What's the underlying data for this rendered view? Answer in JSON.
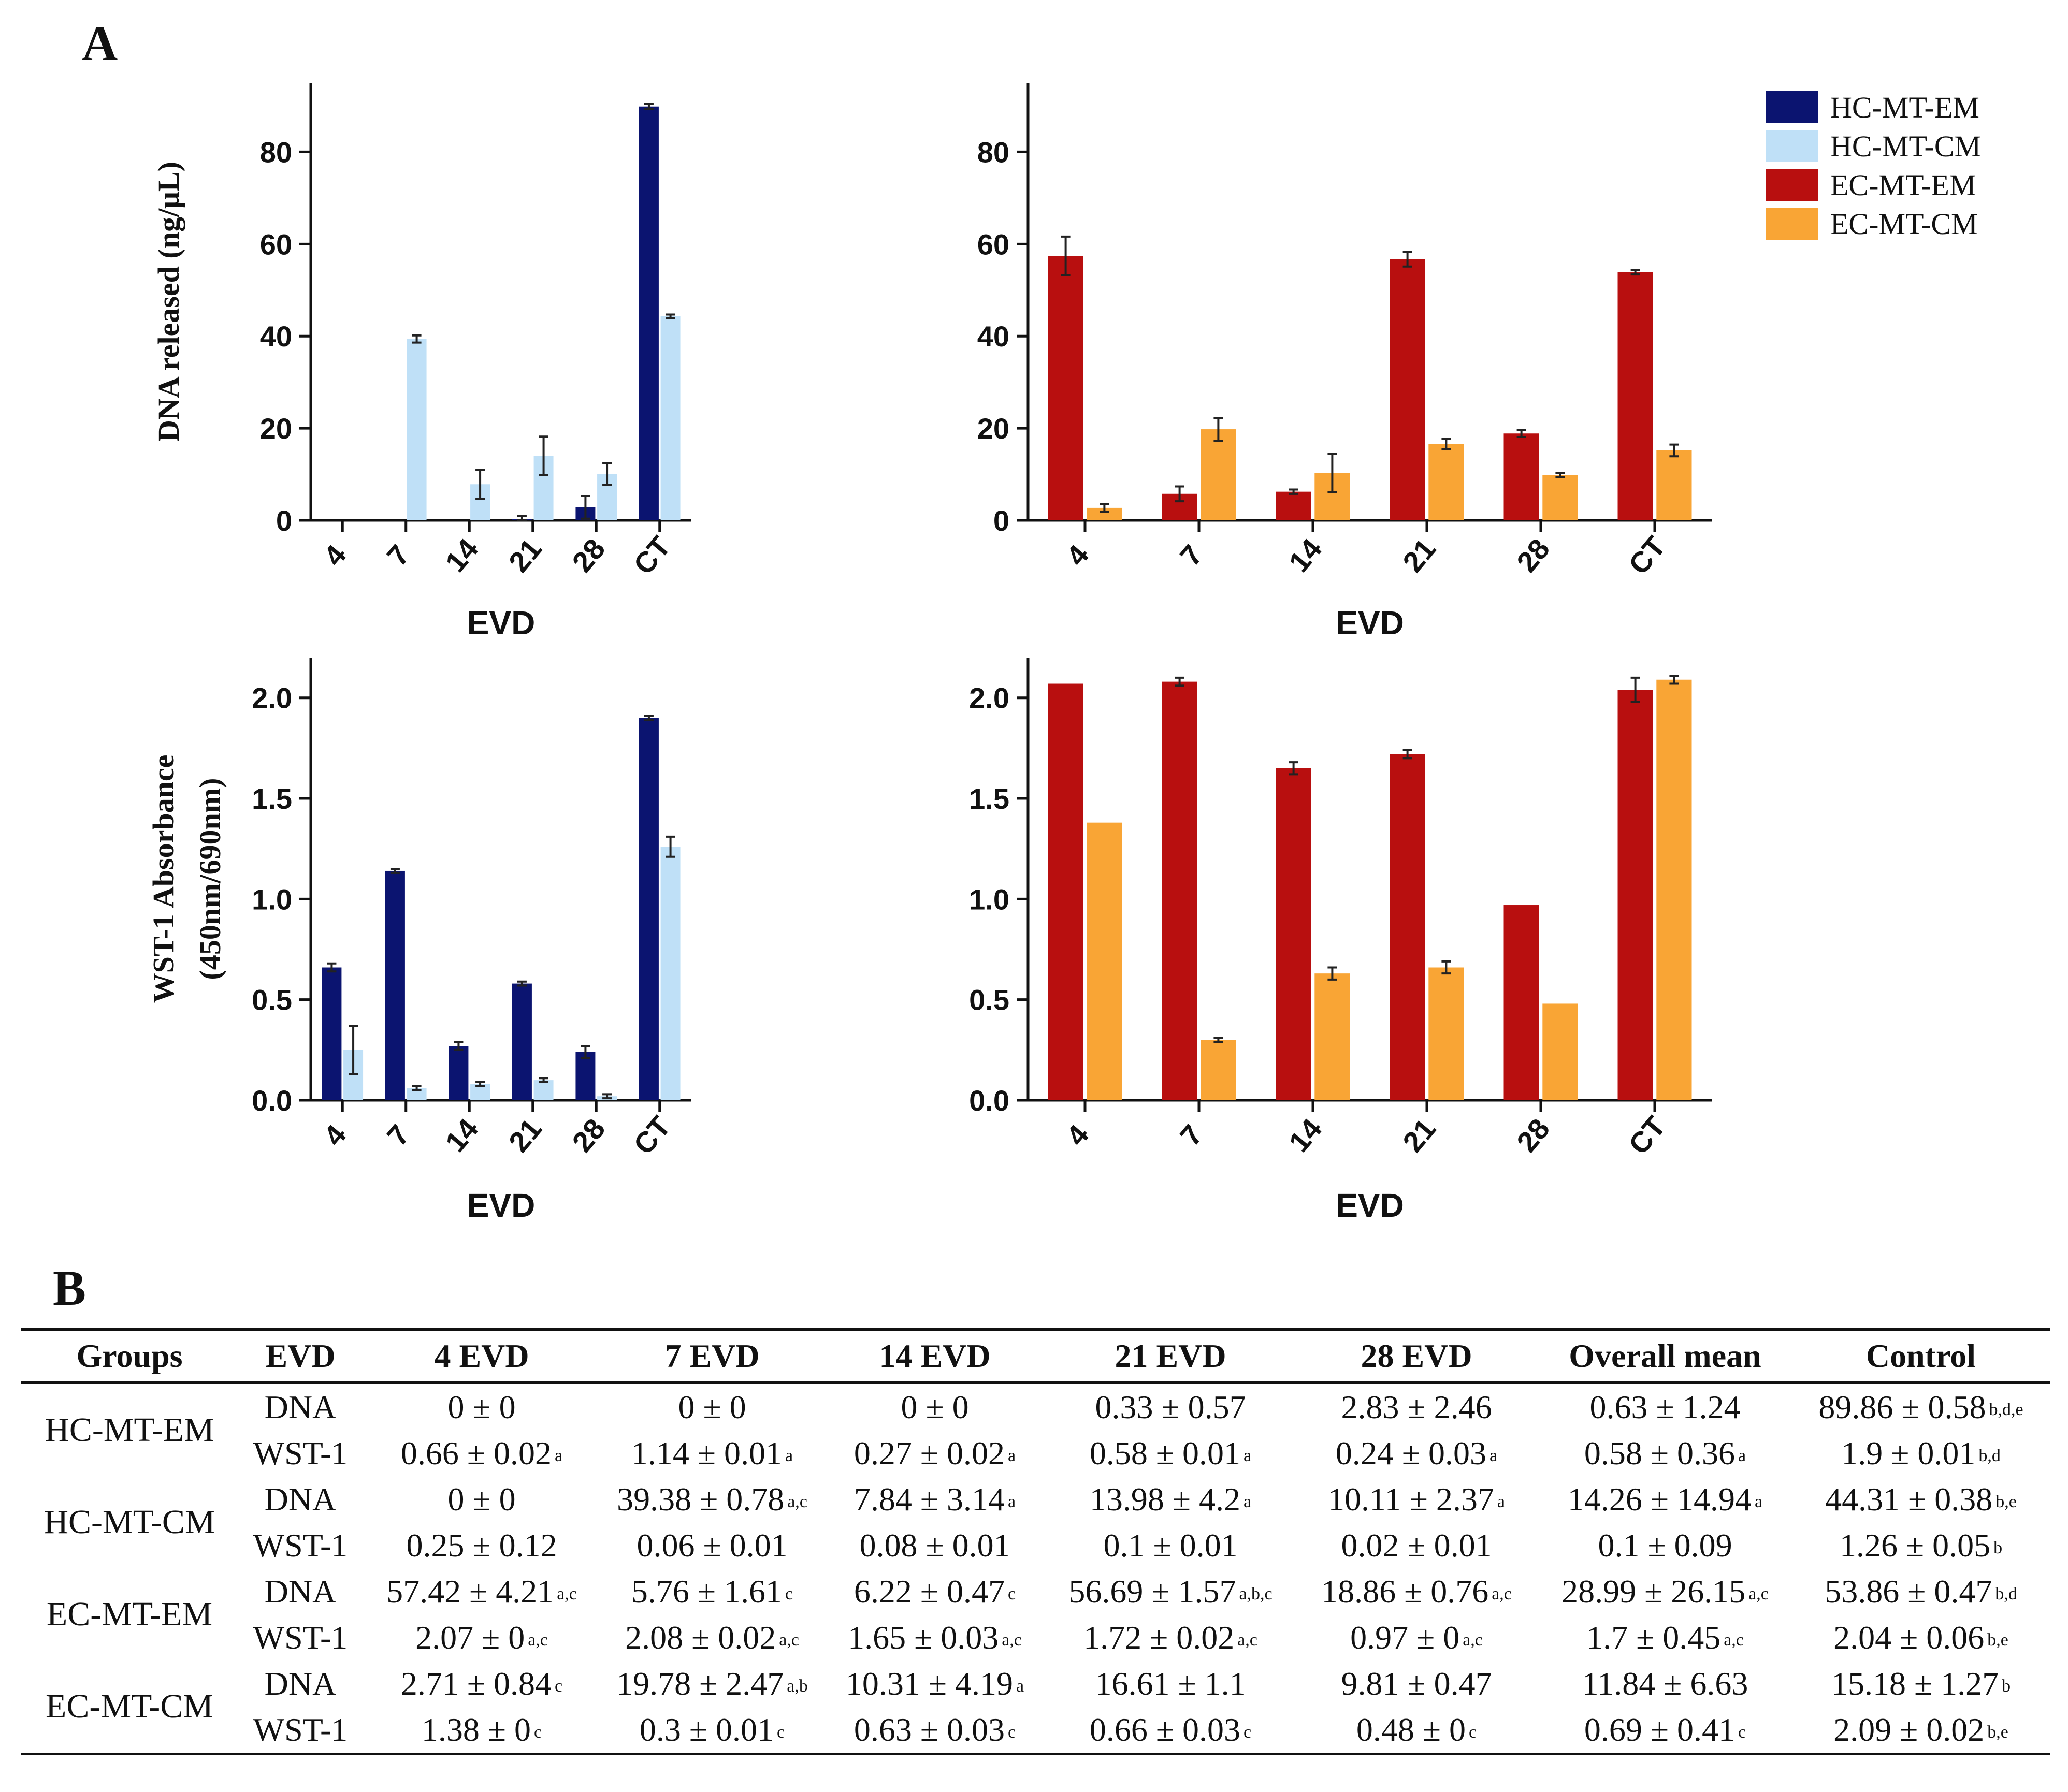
{
  "panel_a_label": "A",
  "panel_b_label": "B",
  "legend": [
    {
      "label": "HC-MT-EM",
      "color": "#0b1470"
    },
    {
      "label": "HC-MT-CM",
      "color": "#bfe0f7"
    },
    {
      "label": "EC-MT-EM",
      "color": "#b80f0f"
    },
    {
      "label": "EC-MT-CM",
      "color": "#f9a535"
    }
  ],
  "chart_data": [
    {
      "type": "bar",
      "panel": "top-left",
      "xlabel": "EVD",
      "ylabel": "DNA released (ng/μL)",
      "ylim": [
        0,
        95
      ],
      "yticks": [
        0,
        20,
        40,
        60,
        80
      ],
      "categories": [
        "4",
        "7",
        "14",
        "21",
        "28",
        "CT"
      ],
      "series": [
        {
          "name": "HC-MT-EM",
          "color": "#0b1470",
          "values": [
            0,
            0,
            0,
            0.33,
            2.83,
            89.86
          ],
          "errors": [
            0,
            0,
            0,
            0.57,
            2.46,
            0.58
          ]
        },
        {
          "name": "HC-MT-CM",
          "color": "#bfe0f7",
          "values": [
            0,
            39.38,
            7.84,
            13.98,
            10.11,
            44.31
          ],
          "errors": [
            0,
            0.78,
            3.14,
            4.2,
            2.37,
            0.38
          ]
        }
      ]
    },
    {
      "type": "bar",
      "panel": "top-right",
      "xlabel": "EVD",
      "ylabel": "",
      "ylim": [
        0,
        95
      ],
      "yticks": [
        0,
        20,
        40,
        60,
        80
      ],
      "categories": [
        "4",
        "7",
        "14",
        "21",
        "28",
        "CT"
      ],
      "series": [
        {
          "name": "EC-MT-EM",
          "color": "#b80f0f",
          "values": [
            57.42,
            5.76,
            6.22,
            56.69,
            18.86,
            53.86
          ],
          "errors": [
            4.21,
            1.61,
            0.47,
            1.57,
            0.76,
            0.47
          ]
        },
        {
          "name": "EC-MT-CM",
          "color": "#f9a535",
          "values": [
            2.71,
            19.78,
            10.31,
            16.61,
            9.81,
            15.18
          ],
          "errors": [
            0.84,
            2.47,
            4.19,
            1.1,
            0.47,
            1.27
          ]
        }
      ]
    },
    {
      "type": "bar",
      "panel": "bottom-left",
      "xlabel": "EVD",
      "ylabel": "WST-1 Absorbance",
      "ylabel2": "(450nm/690nm)",
      "ylim": [
        0,
        2.2
      ],
      "yticks": [
        0.0,
        0.5,
        1.0,
        1.5,
        2.0
      ],
      "categories": [
        "4",
        "7",
        "14",
        "21",
        "28",
        "CT"
      ],
      "series": [
        {
          "name": "HC-MT-EM",
          "color": "#0b1470",
          "values": [
            0.66,
            1.14,
            0.27,
            0.58,
            0.24,
            1.9
          ],
          "errors": [
            0.02,
            0.01,
            0.02,
            0.01,
            0.03,
            0.01
          ]
        },
        {
          "name": "HC-MT-CM",
          "color": "#bfe0f7",
          "values": [
            0.25,
            0.06,
            0.08,
            0.1,
            0.02,
            1.26
          ],
          "errors": [
            0.12,
            0.01,
            0.01,
            0.01,
            0.01,
            0.05
          ]
        }
      ]
    },
    {
      "type": "bar",
      "panel": "bottom-right",
      "xlabel": "EVD",
      "ylabel": "",
      "ylim": [
        0,
        2.2
      ],
      "yticks": [
        0.0,
        0.5,
        1.0,
        1.5,
        2.0
      ],
      "categories": [
        "4",
        "7",
        "14",
        "21",
        "28",
        "CT"
      ],
      "series": [
        {
          "name": "EC-MT-EM",
          "color": "#b80f0f",
          "values": [
            2.07,
            2.08,
            1.65,
            1.72,
            0.97,
            2.04
          ],
          "errors": [
            0,
            0.02,
            0.03,
            0.02,
            0,
            0.06
          ]
        },
        {
          "name": "EC-MT-CM",
          "color": "#f9a535",
          "values": [
            1.38,
            0.3,
            0.63,
            0.66,
            0.48,
            2.09
          ],
          "errors": [
            0,
            0.01,
            0.03,
            0.03,
            0,
            0.02
          ]
        }
      ]
    }
  ],
  "table": {
    "headers": [
      "Groups",
      "EVD",
      "4 EVD",
      "7 EVD",
      "14 EVD",
      "21 EVD",
      "28 EVD",
      "Overall mean",
      "Control"
    ],
    "groups": [
      {
        "name": "HC-MT-EM",
        "rows": [
          {
            "measure": "DNA",
            "cells": [
              [
                "0 ± 0",
                ""
              ],
              [
                "0 ± 0",
                ""
              ],
              [
                "0 ± 0",
                ""
              ],
              [
                "0.33 ± 0.57",
                ""
              ],
              [
                "2.83 ± 2.46",
                ""
              ],
              [
                "0.63 ± 1.24",
                ""
              ],
              [
                "89.86 ± 0.58",
                "b,d,e"
              ]
            ]
          },
          {
            "measure": "WST-1",
            "cells": [
              [
                "0.66 ± 0.02",
                "a"
              ],
              [
                "1.14 ± 0.01",
                "a"
              ],
              [
                "0.27 ± 0.02",
                "a"
              ],
              [
                "0.58 ± 0.01",
                "a"
              ],
              [
                "0.24 ± 0.03",
                "a"
              ],
              [
                "0.58 ± 0.36",
                "a"
              ],
              [
                "1.9 ± 0.01",
                "b,d"
              ]
            ]
          }
        ]
      },
      {
        "name": "HC-MT-CM",
        "rows": [
          {
            "measure": "DNA",
            "cells": [
              [
                "0 ± 0",
                ""
              ],
              [
                "39.38 ± 0.78",
                "a,c"
              ],
              [
                "7.84 ± 3.14",
                "a"
              ],
              [
                "13.98 ± 4.2",
                "a"
              ],
              [
                "10.11 ± 2.37",
                "a"
              ],
              [
                "14.26 ± 14.94",
                "a"
              ],
              [
                "44.31 ± 0.38",
                "b,e"
              ]
            ]
          },
          {
            "measure": "WST-1",
            "cells": [
              [
                "0.25 ± 0.12",
                ""
              ],
              [
                "0.06 ± 0.01",
                ""
              ],
              [
                "0.08 ± 0.01",
                ""
              ],
              [
                "0.1 ± 0.01",
                ""
              ],
              [
                "0.02 ± 0.01",
                ""
              ],
              [
                "0.1 ± 0.09",
                ""
              ],
              [
                "1.26 ± 0.05",
                "b"
              ]
            ]
          }
        ]
      },
      {
        "name": "EC-MT-EM",
        "rows": [
          {
            "measure": "DNA",
            "cells": [
              [
                "57.42 ± 4.21",
                "a,c"
              ],
              [
                "5.76 ± 1.61",
                "c"
              ],
              [
                "6.22 ± 0.47",
                "c"
              ],
              [
                "56.69 ± 1.57",
                "a,b,c"
              ],
              [
                "18.86 ± 0.76",
                "a,c"
              ],
              [
                "28.99 ± 26.15",
                "a,c"
              ],
              [
                "53.86 ± 0.47",
                "b,d"
              ]
            ]
          },
          {
            "measure": "WST-1",
            "cells": [
              [
                "2.07 ± 0",
                "a,c"
              ],
              [
                "2.08 ± 0.02",
                "a,c"
              ],
              [
                "1.65 ± 0.03",
                "a,c"
              ],
              [
                "1.72 ± 0.02",
                "a,c"
              ],
              [
                "0.97 ± 0",
                "a,c"
              ],
              [
                "1.7 ± 0.45",
                "a,c"
              ],
              [
                "2.04 ± 0.06",
                "b,e"
              ]
            ]
          }
        ]
      },
      {
        "name": "EC-MT-CM",
        "rows": [
          {
            "measure": "DNA",
            "cells": [
              [
                "2.71 ± 0.84",
                "c"
              ],
              [
                "19.78 ± 2.47",
                "a,b"
              ],
              [
                "10.31 ± 4.19",
                "a"
              ],
              [
                "16.61 ± 1.1",
                ""
              ],
              [
                "9.81 ± 0.47",
                ""
              ],
              [
                "11.84 ± 6.63",
                ""
              ],
              [
                "15.18 ± 1.27",
                "b"
              ]
            ]
          },
          {
            "measure": "WST-1",
            "cells": [
              [
                "1.38 ± 0",
                "c"
              ],
              [
                "0.3 ± 0.01",
                "c"
              ],
              [
                "0.63 ± 0.03",
                "c"
              ],
              [
                "0.66 ± 0.03",
                "c"
              ],
              [
                "0.48 ± 0",
                "c"
              ],
              [
                "0.69 ± 0.41",
                "c"
              ],
              [
                "2.09 ± 0.02",
                "b,e"
              ]
            ]
          }
        ]
      }
    ]
  }
}
